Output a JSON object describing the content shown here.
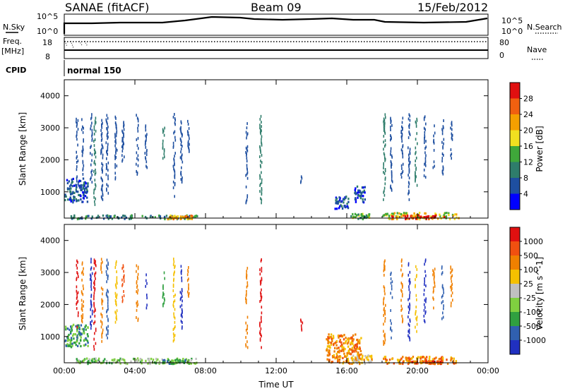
{
  "header": {
    "station": "SANAE (fitACF)",
    "beam": "Beam 09",
    "date": "15/Feb/2012"
  },
  "top_panels": {
    "nsky": {
      "left_label": "N.Sky",
      "right_label": "N.Search",
      "left_ticks": [
        "10^5",
        "10^0"
      ],
      "right_ticks": [
        "10^5",
        "10^0"
      ]
    },
    "freq": {
      "left_label_1": "Freq.",
      "left_label_2": "[MHz]",
      "right_label": "Nave",
      "left_ticks": [
        "18",
        "8"
      ],
      "right_ticks": [
        "80",
        "0"
      ]
    },
    "cpid": {
      "label": "CPID",
      "value": "normal 150"
    }
  },
  "chart_data": [
    {
      "type": "heatmap",
      "title": "",
      "ylabel": "Slant Range [km]",
      "ylim": [
        180,
        4500
      ],
      "yticks": [
        1000,
        2000,
        3000,
        4000
      ],
      "xlim": [
        0,
        24
      ],
      "xticks": [
        "00:00",
        "04:00",
        "08:00",
        "12:00",
        "16:00",
        "20:00",
        "00:00"
      ],
      "colorbar": {
        "label": "Power [dB]",
        "ticks": [
          "4",
          "8",
          "12",
          "16",
          "20",
          "24",
          "28"
        ],
        "colors": [
          "#0000ff",
          "#1e4fa0",
          "#2e7d6b",
          "#3fa83a",
          "#f0e020",
          "#f5a000",
          "#f06010",
          "#e01010"
        ]
      },
      "regions": [
        {
          "time_start": 0.0,
          "time_end": 1.3,
          "range_start": 700,
          "range_end": 1450,
          "level": 1
        },
        {
          "time_start": 0.3,
          "time_end": 7.5,
          "range_start": 180,
          "range_end": 300,
          "level": 2
        },
        {
          "time_start": 5.8,
          "time_end": 7.3,
          "range_start": 180,
          "range_end": 300,
          "level": 5
        },
        {
          "time_start": 15.3,
          "time_end": 16.1,
          "range_start": 500,
          "range_end": 900,
          "level": 1
        },
        {
          "time_start": 16.4,
          "time_end": 17.0,
          "range_start": 700,
          "range_end": 1200,
          "level": 1
        },
        {
          "time_start": 16.2,
          "time_end": 17.3,
          "range_start": 180,
          "range_end": 350,
          "level": 3
        },
        {
          "time_start": 18.0,
          "time_end": 22.3,
          "range_start": 180,
          "range_end": 380,
          "level": 4
        },
        {
          "time_start": 18.5,
          "time_end": 21.5,
          "range_start": 180,
          "range_end": 300,
          "level": 7
        }
      ],
      "streaks": [
        {
          "time": 0.7,
          "range_start": 1200,
          "range_end": 3500,
          "level": 1
        },
        {
          "time": 1.0,
          "range_start": 1500,
          "range_end": 3400,
          "level": 1
        },
        {
          "time": 1.5,
          "range_start": 1300,
          "range_end": 3500,
          "level": 1
        },
        {
          "time": 1.7,
          "range_start": 600,
          "range_end": 3500,
          "level": 2
        },
        {
          "time": 2.1,
          "range_start": 800,
          "range_end": 3500,
          "level": 1
        },
        {
          "time": 2.4,
          "range_start": 1000,
          "range_end": 3500,
          "level": 1
        },
        {
          "time": 2.9,
          "range_start": 1400,
          "range_end": 3500,
          "level": 1
        },
        {
          "time": 3.3,
          "range_start": 2000,
          "range_end": 3300,
          "level": 1
        },
        {
          "time": 4.1,
          "range_start": 1500,
          "range_end": 3500,
          "level": 1
        },
        {
          "time": 4.6,
          "range_start": 1800,
          "range_end": 3200,
          "level": 1
        },
        {
          "time": 5.6,
          "range_start": 2000,
          "range_end": 3100,
          "level": 2
        },
        {
          "time": 6.2,
          "range_start": 900,
          "range_end": 3500,
          "level": 1
        },
        {
          "time": 6.6,
          "range_start": 1300,
          "range_end": 3300,
          "level": 1
        },
        {
          "time": 7.0,
          "range_start": 2300,
          "range_end": 3300,
          "level": 1
        },
        {
          "time": 10.3,
          "range_start": 700,
          "range_end": 3200,
          "level": 1
        },
        {
          "time": 11.1,
          "range_start": 700,
          "range_end": 3500,
          "level": 2
        },
        {
          "time": 13.4,
          "range_start": 1200,
          "range_end": 1600,
          "level": 1
        },
        {
          "time": 18.1,
          "range_start": 800,
          "range_end": 3500,
          "level": 2
        },
        {
          "time": 18.5,
          "range_start": 1000,
          "range_end": 3400,
          "level": 1
        },
        {
          "time": 19.1,
          "range_start": 1500,
          "range_end": 3500,
          "level": 1
        },
        {
          "time": 19.5,
          "range_start": 800,
          "range_end": 3500,
          "level": 1
        },
        {
          "time": 19.9,
          "range_start": 1200,
          "range_end": 3400,
          "level": 2
        },
        {
          "time": 20.4,
          "range_start": 1500,
          "range_end": 3500,
          "level": 1
        },
        {
          "time": 20.9,
          "range_start": 1800,
          "range_end": 3200,
          "level": 1
        },
        {
          "time": 21.4,
          "range_start": 1600,
          "range_end": 3300,
          "level": 1
        },
        {
          "time": 21.9,
          "range_start": 2000,
          "range_end": 3300,
          "level": 1
        }
      ]
    },
    {
      "type": "heatmap",
      "title": "",
      "ylabel": "Slant Range [km]",
      "ylim": [
        180,
        4500
      ],
      "yticks": [
        1000,
        2000,
        3000,
        4000
      ],
      "xlim": [
        0,
        24
      ],
      "xticks": [
        "00:00",
        "04:00",
        "08:00",
        "12:00",
        "16:00",
        "20:00",
        "00:00"
      ],
      "xlabel": "Time UT",
      "colorbar": {
        "label": "Velocity [m s^-1]",
        "ticks": [
          "1000",
          "500",
          "100",
          "25",
          "-25",
          "-100",
          "-500",
          "-1000"
        ],
        "colors": [
          "#2030c0",
          "#3060b0",
          "#30a040",
          "#80d040",
          "#c0c0c0",
          "#f5c000",
          "#f08000",
          "#f05010",
          "#e01010"
        ]
      },
      "regions": [
        {
          "time_start": 0.0,
          "time_end": 1.3,
          "range_start": 700,
          "range_end": 1400,
          "level": 2
        },
        {
          "time_start": 0.6,
          "time_end": 7.5,
          "range_start": 180,
          "range_end": 350,
          "level": 3
        },
        {
          "time_start": 5.5,
          "time_end": 7.3,
          "range_start": 180,
          "range_end": 300,
          "level": 2
        },
        {
          "time_start": 14.8,
          "time_end": 16.8,
          "range_start": 180,
          "range_end": 1100,
          "level": 6
        },
        {
          "time_start": 16.2,
          "time_end": 17.4,
          "range_start": 180,
          "range_end": 450,
          "level": 5
        },
        {
          "time_start": 18.0,
          "time_end": 22.3,
          "range_start": 180,
          "range_end": 400,
          "level": 6
        },
        {
          "time_start": 19.5,
          "time_end": 21.5,
          "range_start": 180,
          "range_end": 260,
          "level": 7
        }
      ],
      "streaks": [
        {
          "time": 0.7,
          "range_start": 1200,
          "range_end": 3500,
          "level": 8
        },
        {
          "time": 1.0,
          "range_start": 1500,
          "range_end": 3400,
          "level": 6
        },
        {
          "time": 1.5,
          "range_start": 1300,
          "range_end": 3500,
          "level": 0
        },
        {
          "time": 1.7,
          "range_start": 600,
          "range_end": 3500,
          "level": 8
        },
        {
          "time": 2.1,
          "range_start": 800,
          "range_end": 3500,
          "level": 6
        },
        {
          "time": 2.4,
          "range_start": 1000,
          "range_end": 3500,
          "level": 1
        },
        {
          "time": 2.9,
          "range_start": 1400,
          "range_end": 3500,
          "level": 5
        },
        {
          "time": 3.3,
          "range_start": 2000,
          "range_end": 3300,
          "level": 7
        },
        {
          "time": 4.1,
          "range_start": 1500,
          "range_end": 3500,
          "level": 6
        },
        {
          "time": 4.6,
          "range_start": 1800,
          "range_end": 3200,
          "level": 0
        },
        {
          "time": 5.6,
          "range_start": 2000,
          "range_end": 3100,
          "level": 2
        },
        {
          "time": 6.2,
          "range_start": 900,
          "range_end": 3500,
          "level": 5
        },
        {
          "time": 6.6,
          "range_start": 1300,
          "range_end": 3300,
          "level": 0
        },
        {
          "time": 7.0,
          "range_start": 2300,
          "range_end": 3300,
          "level": 6
        },
        {
          "time": 10.3,
          "range_start": 700,
          "range_end": 3200,
          "level": 6
        },
        {
          "time": 11.1,
          "range_start": 700,
          "range_end": 3500,
          "level": 8
        },
        {
          "time": 13.4,
          "range_start": 1200,
          "range_end": 1600,
          "level": 8
        },
        {
          "time": 18.1,
          "range_start": 800,
          "range_end": 3500,
          "level": 6
        },
        {
          "time": 18.5,
          "range_start": 1000,
          "range_end": 3400,
          "level": 1
        },
        {
          "time": 19.1,
          "range_start": 1500,
          "range_end": 3500,
          "level": 6
        },
        {
          "time": 19.5,
          "range_start": 800,
          "range_end": 3500,
          "level": 0
        },
        {
          "time": 19.9,
          "range_start": 1200,
          "range_end": 3400,
          "level": 5
        },
        {
          "time": 20.4,
          "range_start": 1500,
          "range_end": 3500,
          "level": 0
        },
        {
          "time": 20.9,
          "range_start": 1800,
          "range_end": 3200,
          "level": 6
        },
        {
          "time": 21.4,
          "range_start": 1600,
          "range_end": 3300,
          "level": 1
        },
        {
          "time": 21.9,
          "range_start": 2000,
          "range_end": 3300,
          "level": 6
        }
      ]
    }
  ]
}
